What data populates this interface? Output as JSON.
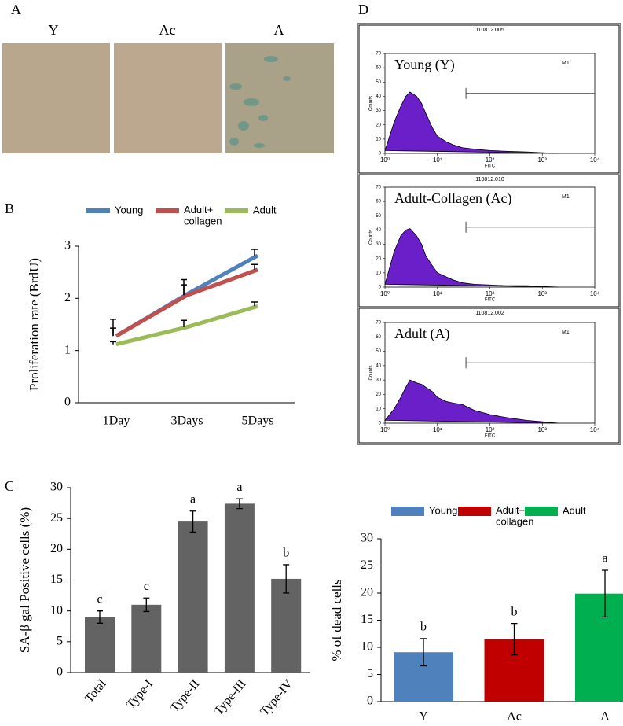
{
  "panel_labels": [
    "A",
    "B",
    "C",
    "D"
  ],
  "micrographs": {
    "labels": [
      "Y",
      "Ac",
      "A"
    ]
  },
  "chart_data": [
    {
      "type": "line",
      "ylabel": "Proliferation rate (BrdU)",
      "categories": [
        "1Day",
        "3Days",
        "5Days"
      ],
      "series": [
        {
          "name": "Young",
          "color": "#4f81bd",
          "values": [
            1.28,
            2.08,
            2.82
          ],
          "errors": [
            0.32,
            0.28,
            0.12
          ]
        },
        {
          "name": "Adult+ collagen",
          "color": "#c0504d",
          "values": [
            1.28,
            2.06,
            2.55
          ],
          "errors": [
            0.15,
            0.2,
            0.1
          ]
        },
        {
          "name": "Adult",
          "color": "#9bbb59",
          "values": [
            1.12,
            1.45,
            1.85
          ],
          "errors": [
            0.05,
            0.13,
            0.08
          ]
        }
      ],
      "ylim": [
        0,
        3
      ],
      "yticks": [
        0,
        1,
        2,
        3
      ]
    },
    {
      "type": "bar",
      "ylabel": "SA-β gal Positive cells (%)",
      "categories": [
        "Total",
        "Type-I",
        "Type-II",
        "Type-III",
        "Type-IV"
      ],
      "values": [
        9,
        11,
        24.5,
        27.4,
        15.2
      ],
      "errors": [
        1,
        1.1,
        1.7,
        0.8,
        2.3
      ],
      "annotations": [
        "c",
        "c",
        "a",
        "a",
        "b"
      ],
      "color": "#636363",
      "ylim": [
        0,
        30
      ],
      "yticks": [
        0,
        5,
        10,
        15,
        20,
        25,
        30
      ]
    },
    {
      "type": "bar",
      "ylabel": "% of dead cells",
      "categories": [
        "Y",
        "Ac",
        "A"
      ],
      "values": [
        9.1,
        11.5,
        19.9
      ],
      "errors": [
        2.5,
        2.9,
        4.3
      ],
      "annotations": [
        "b",
        "b",
        "a"
      ],
      "colors": [
        "#4f81bd",
        "#c00000",
        "#00b050"
      ],
      "legend": [
        "Young",
        "Adult+ collagen",
        "Adult"
      ],
      "ylim": [
        0,
        30
      ],
      "yticks": [
        0,
        5,
        10,
        15,
        20,
        25,
        30
      ]
    },
    {
      "type": "area",
      "title": "Young (Y)",
      "subtitle": "110812.005",
      "xlabel": "FITC",
      "ylabel": "Counts",
      "xlog": true,
      "color": "#6a1fc9",
      "x": [
        1,
        1.5,
        2,
        2.5,
        3,
        4,
        5,
        6,
        8,
        10,
        15,
        20,
        30,
        50,
        100,
        200,
        500,
        1000,
        2000
      ],
      "values": [
        2,
        22,
        33,
        40,
        43,
        40,
        35,
        28,
        18,
        12,
        8,
        6,
        4,
        3,
        2,
        1.5,
        1,
        0.5,
        0
      ],
      "gate": {
        "label": "M1",
        "range": [
          35,
          10000
        ]
      },
      "xlim": [
        1,
        10000
      ],
      "xticks": [
        {
          "value": 1,
          "label": "10⁰"
        },
        {
          "value": 10,
          "label": "10¹"
        },
        {
          "value": 100,
          "label": "10²"
        },
        {
          "value": 1000,
          "label": "10³"
        },
        {
          "value": 10000,
          "label": "10⁴"
        }
      ],
      "ylim": [
        0,
        70
      ],
      "yticks": [
        0,
        10,
        20,
        30,
        40,
        50,
        60,
        70
      ]
    },
    {
      "type": "area",
      "title": "Adult-Collagen (Ac)",
      "subtitle": "110812.010",
      "xlabel": "FITC",
      "ylabel": "Counts",
      "xlog": true,
      "color": "#6a1fc9",
      "x": [
        1,
        1.5,
        2,
        2.5,
        3,
        4,
        5,
        6,
        8,
        10,
        15,
        20,
        30,
        50,
        100,
        200,
        500,
        1000,
        2000
      ],
      "values": [
        2,
        25,
        36,
        40,
        41,
        36,
        30,
        22,
        15,
        10,
        7,
        5,
        3,
        2,
        1.5,
        1,
        1,
        0.5,
        0
      ],
      "gate": {
        "label": "M1",
        "range": [
          35,
          10000
        ]
      },
      "xlim": [
        1,
        10000
      ],
      "xticks": [
        {
          "value": 1,
          "label": "10⁰"
        },
        {
          "value": 10,
          "label": "10¹"
        },
        {
          "value": 100,
          "label": "10²"
        },
        {
          "value": 1000,
          "label": "10³"
        },
        {
          "value": 10000,
          "label": "10⁴"
        }
      ],
      "ylim": [
        0,
        70
      ],
      "yticks": [
        0,
        10,
        20,
        30,
        40,
        50,
        60,
        70
      ]
    },
    {
      "type": "area",
      "title": "Adult (A)",
      "subtitle": "110812.002",
      "xlabel": "FITC",
      "ylabel": "Counts",
      "xlog": true,
      "color": "#6a1fc9",
      "x": [
        1,
        1.5,
        2,
        2.5,
        3,
        4,
        5,
        6,
        8,
        10,
        15,
        20,
        30,
        50,
        100,
        200,
        500,
        1000,
        2000
      ],
      "values": [
        2,
        10,
        18,
        25,
        30,
        28,
        27,
        25,
        22,
        18,
        15,
        14,
        13,
        9,
        6,
        4,
        2,
        1,
        0
      ],
      "gate": {
        "label": "M1",
        "range": [
          35,
          10000
        ]
      },
      "xlim": [
        1,
        10000
      ],
      "xticks": [
        {
          "value": 1,
          "label": "10⁰"
        },
        {
          "value": 10,
          "label": "10¹"
        },
        {
          "value": 100,
          "label": "10²"
        },
        {
          "value": 1000,
          "label": "10³"
        },
        {
          "value": 10000,
          "label": "10⁴"
        }
      ],
      "ylim": [
        0,
        70
      ],
      "yticks": [
        0,
        10,
        20,
        30,
        40,
        50,
        60,
        70
      ]
    }
  ]
}
